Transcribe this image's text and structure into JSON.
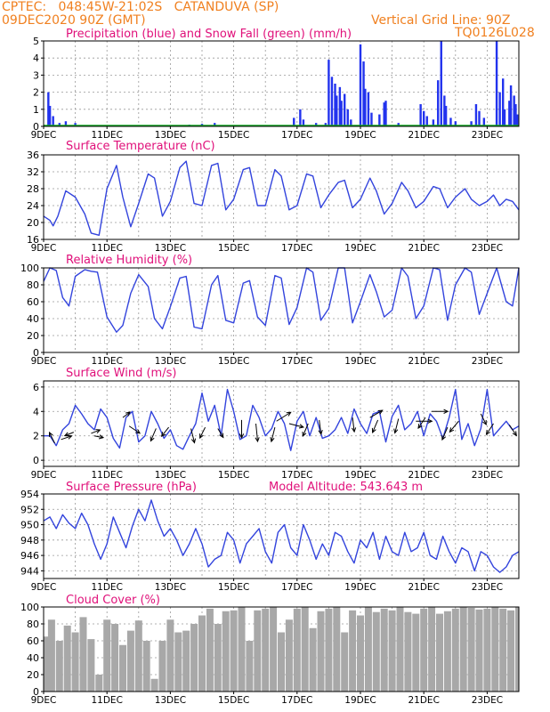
{
  "header": {
    "line1": "CPTEC:   048:45W-21:02S   CATANDUVA (SP)",
    "line2": "09DEC2020 90Z (GMT)",
    "vgrid": "Vertical Grid Line: 90Z",
    "code": "TQ0126L028"
  },
  "colors": {
    "header": "#f08020",
    "title": "#e0107a",
    "precip": "#2233ee",
    "snow": "#11aa22",
    "line": "#3344dd",
    "cloud": "#a8a8a8",
    "arrow": "#000000"
  },
  "x_ticks": [
    "9DEC",
    "11DEC",
    "13DEC",
    "15DEC",
    "17DEC",
    "19DEC",
    "21DEC",
    "23DEC"
  ],
  "chart_data": [
    {
      "type": "bar",
      "title": "Precipitation (blue) and Snow Fall (green) (mm/h)",
      "yticks": [
        "0",
        "1",
        "2",
        "3",
        "4",
        "5"
      ],
      "ylim": [
        0,
        5
      ],
      "grid": true,
      "series": [
        {
          "name": "Precipitation",
          "values": [
            [
              0.15,
              2.0
            ],
            [
              0.2,
              1.2
            ],
            [
              0.3,
              0.6
            ],
            [
              0.5,
              0.2
            ],
            [
              0.7,
              0.3
            ],
            [
              1.0,
              0.2
            ],
            [
              4.6,
              0.1
            ],
            [
              5.0,
              0.15
            ],
            [
              5.4,
              0.2
            ],
            [
              7.9,
              0.5
            ],
            [
              8.1,
              1.0
            ],
            [
              8.2,
              0.4
            ],
            [
              8.6,
              0.2
            ],
            [
              8.9,
              0.2
            ],
            [
              9.0,
              3.9
            ],
            [
              9.1,
              2.9
            ],
            [
              9.2,
              2.5
            ],
            [
              9.25,
              1.8
            ],
            [
              9.35,
              2.3
            ],
            [
              9.4,
              1.5
            ],
            [
              9.5,
              1.9
            ],
            [
              9.6,
              1.0
            ],
            [
              9.7,
              0.4
            ],
            [
              10.0,
              4.8
            ],
            [
              10.1,
              3.8
            ],
            [
              10.15,
              2.2
            ],
            [
              10.25,
              2.0
            ],
            [
              10.35,
              0.8
            ],
            [
              10.6,
              0.7
            ],
            [
              10.75,
              1.4
            ],
            [
              10.8,
              1.5
            ],
            [
              11.2,
              0.2
            ],
            [
              11.9,
              1.3
            ],
            [
              12.0,
              0.9
            ],
            [
              12.1,
              0.6
            ],
            [
              12.3,
              0.4
            ],
            [
              12.45,
              2.7
            ],
            [
              12.55,
              5.0
            ],
            [
              12.65,
              1.8
            ],
            [
              12.7,
              1.2
            ],
            [
              12.85,
              0.5
            ],
            [
              13.0,
              0.3
            ],
            [
              13.5,
              0.3
            ],
            [
              13.65,
              1.3
            ],
            [
              13.75,
              0.9
            ],
            [
              13.9,
              0.5
            ],
            [
              14.3,
              5.0
            ],
            [
              14.4,
              2.0
            ],
            [
              14.5,
              2.8
            ],
            [
              14.55,
              1.0
            ],
            [
              14.7,
              1.5
            ],
            [
              14.75,
              2.4
            ],
            [
              14.85,
              1.8
            ],
            [
              14.9,
              1.3
            ],
            [
              14.95,
              0.7
            ]
          ]
        },
        {
          "name": "Snow Fall",
          "values": []
        }
      ]
    },
    {
      "type": "line",
      "title": "Surface Temperature (nC)",
      "yticks": [
        "16",
        "20",
        "24",
        "28",
        "32",
        "36"
      ],
      "ylim": [
        16,
        36
      ],
      "grid": true,
      "x": [
        0,
        0.2,
        0.3,
        0.45,
        0.7,
        1.0,
        1.3,
        1.5,
        1.75,
        2.0,
        2.3,
        2.5,
        2.75,
        3.0,
        3.3,
        3.5,
        3.75,
        4.0,
        4.3,
        4.5,
        4.75,
        5.0,
        5.3,
        5.5,
        5.75,
        6.0,
        6.3,
        6.5,
        6.75,
        7.0,
        7.3,
        7.5,
        7.75,
        8.0,
        8.3,
        8.5,
        8.75,
        9.0,
        9.3,
        9.5,
        9.75,
        10.0,
        10.3,
        10.5,
        10.75,
        11.0,
        11.3,
        11.5,
        11.75,
        12.0,
        12.3,
        12.5,
        12.75,
        13.0,
        13.3,
        13.5,
        13.75,
        14.0,
        14.2,
        14.4,
        14.6,
        14.8,
        15.0
      ],
      "y": [
        21.5,
        20.5,
        19.2,
        21.5,
        27.5,
        26.0,
        22.0,
        17.5,
        17.0,
        28.0,
        33.5,
        26.0,
        19.0,
        24.5,
        31.5,
        30.5,
        21.5,
        25.0,
        33.0,
        34.5,
        24.5,
        24.0,
        33.5,
        34.0,
        23.0,
        25.5,
        32.5,
        33.0,
        24.0,
        24.0,
        32.5,
        31.0,
        23.0,
        24.0,
        31.5,
        31.0,
        23.5,
        26.5,
        29.5,
        30.0,
        23.5,
        25.5,
        30.5,
        27.5,
        22.0,
        24.5,
        29.5,
        27.5,
        23.5,
        25.0,
        28.5,
        28.0,
        23.5,
        26.0,
        28.0,
        25.5,
        24.0,
        25.0,
        26.5,
        24.0,
        25.5,
        25.0,
        23.0
      ]
    },
    {
      "type": "line",
      "title": "Relative Humidity (%)",
      "yticks": [
        "0",
        "20",
        "40",
        "60",
        "80",
        "100"
      ],
      "ylim": [
        0,
        100
      ],
      "grid": true,
      "x": [
        0,
        0.2,
        0.4,
        0.6,
        0.8,
        1.0,
        1.3,
        1.5,
        1.7,
        2.0,
        2.3,
        2.5,
        2.75,
        3.0,
        3.3,
        3.5,
        3.75,
        4.0,
        4.3,
        4.5,
        4.75,
        5.0,
        5.3,
        5.5,
        5.75,
        6.0,
        6.3,
        6.5,
        6.75,
        7.0,
        7.3,
        7.5,
        7.75,
        8.0,
        8.3,
        8.5,
        8.75,
        9.0,
        9.3,
        9.5,
        9.75,
        10.0,
        10.3,
        10.5,
        10.75,
        11.0,
        11.3,
        11.5,
        11.75,
        12.0,
        12.3,
        12.5,
        12.75,
        13.0,
        13.3,
        13.5,
        13.75,
        14.0,
        14.3,
        14.6,
        14.8,
        15.0
      ],
      "y": [
        84,
        100,
        97,
        65,
        55,
        90,
        98,
        96,
        95,
        42,
        24,
        32,
        70,
        92,
        78,
        40,
        28,
        54,
        88,
        90,
        30,
        28,
        80,
        91,
        38,
        35,
        82,
        85,
        42,
        32,
        91,
        88,
        33,
        53,
        100,
        95,
        38,
        52,
        100,
        100,
        35,
        60,
        92,
        72,
        42,
        50,
        100,
        90,
        40,
        55,
        100,
        98,
        38,
        80,
        100,
        95,
        45,
        70,
        100,
        60,
        55,
        100
      ]
    },
    {
      "type": "line",
      "title": "Surface Wind (m/s)",
      "yticks": [
        "0",
        "2",
        "4",
        "6"
      ],
      "ylim": [
        -0.5,
        6.5
      ],
      "grid": true,
      "x": [
        0,
        0.2,
        0.4,
        0.6,
        0.8,
        1.0,
        1.2,
        1.4,
        1.6,
        1.8,
        2.0,
        2.2,
        2.4,
        2.6,
        2.8,
        3.0,
        3.2,
        3.4,
        3.6,
        3.8,
        4.0,
        4.2,
        4.4,
        4.6,
        4.8,
        5.0,
        5.2,
        5.4,
        5.6,
        5.8,
        6.0,
        6.2,
        6.4,
        6.6,
        6.8,
        7.0,
        7.2,
        7.4,
        7.6,
        7.8,
        8.0,
        8.2,
        8.4,
        8.6,
        8.8,
        9.0,
        9.2,
        9.4,
        9.6,
        9.8,
        10.0,
        10.2,
        10.4,
        10.6,
        10.8,
        11.0,
        11.2,
        11.4,
        11.6,
        11.8,
        12.0,
        12.2,
        12.4,
        12.6,
        12.8,
        13.0,
        13.2,
        13.4,
        13.6,
        13.8,
        14.0,
        14.2,
        14.4,
        14.6,
        14.8,
        15.0
      ],
      "y": [
        2.0,
        2.0,
        1.2,
        2.5,
        3.0,
        4.5,
        3.8,
        3.0,
        2.5,
        4.2,
        3.5,
        1.8,
        1.0,
        3.5,
        4.0,
        1.5,
        2.0,
        4.0,
        3.0,
        1.8,
        2.5,
        1.2,
        0.9,
        2.0,
        3.0,
        5.5,
        3.2,
        4.5,
        2.0,
        5.8,
        4.0,
        1.7,
        2.0,
        4.5,
        3.5,
        2.0,
        2.6,
        4.0,
        3.0,
        0.8,
        3.2,
        4.0,
        2.0,
        3.5,
        1.8,
        2.0,
        2.5,
        3.5,
        2.2,
        4.2,
        3.0,
        2.2,
        3.8,
        4.0,
        1.5,
        3.6,
        4.5,
        2.5,
        3.0,
        4.0,
        2.0,
        3.8,
        3.2,
        1.8,
        3.5,
        5.8,
        1.7,
        3.0,
        1.2,
        2.6,
        5.8,
        2.0,
        2.6,
        3.2,
        2.5,
        2.8
      ],
      "arrows": [
        [
          0.35,
          1.4,
          -0.3,
          0.6
        ],
        [
          0.55,
          1.7,
          0.6,
          0.2
        ],
        [
          0.95,
          2.3,
          -0.5,
          -0.2
        ],
        [
          1.5,
          2.2,
          0.5,
          0.2
        ],
        [
          1.6,
          2.0,
          0.5,
          -0.1
        ],
        [
          2.5,
          3.5,
          0.4,
          0.3
        ],
        [
          2.7,
          2.8,
          0.6,
          -0.4
        ],
        [
          3.55,
          2.6,
          -0.3,
          -0.7
        ],
        [
          3.95,
          2.7,
          -0.4,
          -0.5
        ],
        [
          4.65,
          2.6,
          0.2,
          -0.8
        ],
        [
          5.1,
          2.7,
          -0.3,
          -0.6
        ],
        [
          5.5,
          2.6,
          0.3,
          -0.5
        ],
        [
          6.25,
          3.3,
          0.0,
          -1.0
        ],
        [
          6.7,
          3.0,
          0.1,
          -1.0
        ],
        [
          7.3,
          2.7,
          -0.2,
          -0.8
        ],
        [
          7.35,
          3.2,
          0.8,
          0.5
        ],
        [
          7.75,
          3.0,
          0.8,
          -0.2
        ],
        [
          8.35,
          3.0,
          -0.3,
          -0.7
        ],
        [
          8.7,
          3.3,
          0.1,
          -0.8
        ],
        [
          9.75,
          3.5,
          0.1,
          -0.8
        ],
        [
          10.3,
          3.5,
          0.7,
          0.4
        ],
        [
          10.55,
          3.3,
          -0.3,
          -0.7
        ],
        [
          11.2,
          3.4,
          -0.2,
          -0.8
        ],
        [
          11.75,
          3.2,
          0.9,
          0.0
        ],
        [
          12.05,
          3.5,
          -0.4,
          -0.6
        ],
        [
          12.25,
          4.0,
          0.9,
          0.0
        ],
        [
          12.75,
          2.7,
          -0.3,
          -0.7
        ],
        [
          13.1,
          3.2,
          -0.5,
          -0.6
        ],
        [
          13.8,
          3.8,
          0.3,
          -0.6
        ],
        [
          14.2,
          3.0,
          -0.4,
          -0.6
        ],
        [
          14.7,
          2.9,
          0.4,
          -0.6
        ]
      ]
    },
    {
      "type": "line",
      "title": "Surface Pressure (hPa)",
      "annotation": "Model Altitude: 543.643  m",
      "yticks": [
        "944",
        "946",
        "948",
        "950",
        "952",
        "954"
      ],
      "ylim": [
        943,
        954
      ],
      "grid": true,
      "x": [
        0,
        0.2,
        0.4,
        0.6,
        0.8,
        1.0,
        1.2,
        1.4,
        1.6,
        1.8,
        2.0,
        2.2,
        2.4,
        2.6,
        2.8,
        3.0,
        3.2,
        3.4,
        3.6,
        3.8,
        4.0,
        4.2,
        4.4,
        4.6,
        4.8,
        5.0,
        5.2,
        5.4,
        5.6,
        5.8,
        6.0,
        6.2,
        6.4,
        6.6,
        6.8,
        7.0,
        7.2,
        7.4,
        7.6,
        7.8,
        8.0,
        8.2,
        8.4,
        8.6,
        8.8,
        9.0,
        9.2,
        9.4,
        9.6,
        9.8,
        10.0,
        10.2,
        10.4,
        10.6,
        10.8,
        11.0,
        11.2,
        11.4,
        11.6,
        11.8,
        12.0,
        12.2,
        12.4,
        12.6,
        12.8,
        13.0,
        13.2,
        13.4,
        13.6,
        13.8,
        14.0,
        14.2,
        14.4,
        14.6,
        14.8,
        15.0
      ],
      "y": [
        950.5,
        951.0,
        949.5,
        951.3,
        950.2,
        949.5,
        951.5,
        950.0,
        947.5,
        945.5,
        947.5,
        951.0,
        949.0,
        947.0,
        949.8,
        952.0,
        950.5,
        953.2,
        950.5,
        948.5,
        949.5,
        948.0,
        946.0,
        947.5,
        949.5,
        947.5,
        944.5,
        945.5,
        946.0,
        949.0,
        948.0,
        945.0,
        947.5,
        948.5,
        949.5,
        946.5,
        945.0,
        949.0,
        950.0,
        947.0,
        946.0,
        950.0,
        948.0,
        945.5,
        947.5,
        946.0,
        949.0,
        948.5,
        946.5,
        945.0,
        948.0,
        947.0,
        949.0,
        945.5,
        948.5,
        946.5,
        946.0,
        949.0,
        946.5,
        947.0,
        949.0,
        946.0,
        945.5,
        948.5,
        946.5,
        945.0,
        947.0,
        946.5,
        944.0,
        946.5,
        946.0,
        944.5,
        943.8,
        944.5,
        946.0,
        946.5
      ]
    },
    {
      "type": "bar",
      "title": "Cloud Cover (%)",
      "yticks": [
        "0",
        "20",
        "40",
        "60",
        "80",
        "100"
      ],
      "ylim": [
        0,
        100
      ],
      "grid": true,
      "x": [
        0,
        0.25,
        0.5,
        0.75,
        1.0,
        1.25,
        1.5,
        1.75,
        2.0,
        2.25,
        2.5,
        2.75,
        3.0,
        3.25,
        3.5,
        3.75,
        4.0,
        4.25,
        4.5,
        4.75,
        5.0,
        5.25,
        5.5,
        5.75,
        6.0,
        6.25,
        6.5,
        6.75,
        7.0,
        7.25,
        7.5,
        7.75,
        8.0,
        8.25,
        8.5,
        8.75,
        9.0,
        9.25,
        9.5,
        9.75,
        10.0,
        10.25,
        10.5,
        10.75,
        11.0,
        11.25,
        11.5,
        11.75,
        12.0,
        12.25,
        12.5,
        12.75,
        13.0,
        13.25,
        13.5,
        13.75,
        14.0,
        14.25,
        14.5,
        14.75,
        15.0
      ],
      "values": [
        65,
        85,
        60,
        78,
        70,
        88,
        62,
        20,
        85,
        80,
        55,
        72,
        84,
        60,
        15,
        60,
        85,
        70,
        72,
        80,
        90,
        98,
        80,
        95,
        96,
        100,
        60,
        96,
        98,
        100,
        70,
        85,
        98,
        100,
        75,
        95,
        98,
        100,
        70,
        96,
        90,
        100,
        94,
        98,
        96,
        100,
        94,
        92,
        98,
        100,
        92,
        95,
        98,
        100,
        99,
        97,
        98,
        100,
        98,
        96,
        100
      ]
    }
  ]
}
